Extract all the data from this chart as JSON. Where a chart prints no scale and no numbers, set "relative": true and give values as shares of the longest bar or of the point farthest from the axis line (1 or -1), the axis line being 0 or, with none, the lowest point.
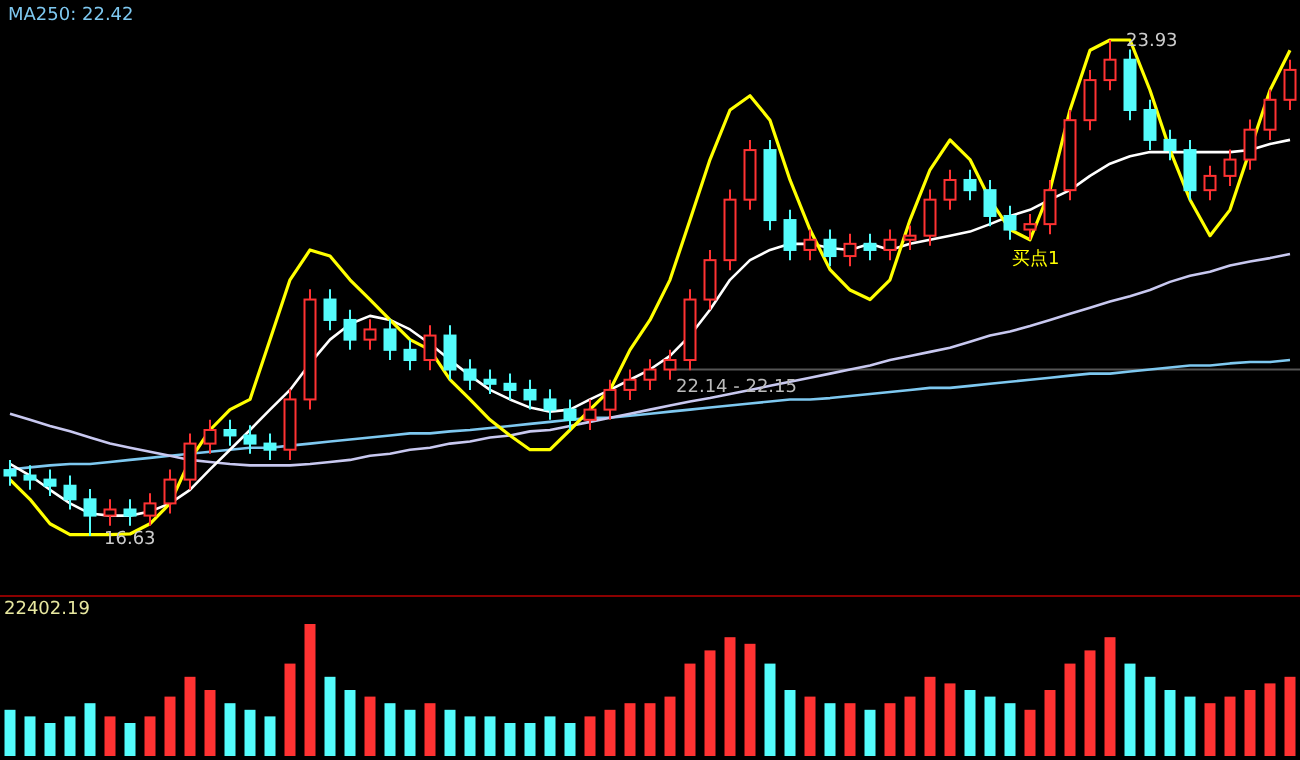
{
  "chart_data": [
    {
      "type": "candlestick",
      "categories": [
        null,
        null,
        null,
        null,
        null,
        null,
        null,
        null,
        null,
        null,
        null,
        null,
        null,
        null,
        null,
        null,
        null,
        null,
        null,
        null,
        null,
        null,
        null,
        null,
        null,
        null,
        null,
        null,
        null,
        null,
        null,
        null,
        null,
        null,
        null,
        null,
        null,
        null,
        null,
        null,
        null,
        null,
        null,
        null,
        null,
        null,
        null,
        null,
        null,
        null,
        null,
        null,
        null,
        null,
        null,
        null,
        null,
        null,
        null,
        null,
        null,
        null,
        null,
        null,
        null
      ],
      "ohlc": [
        [
          17.6,
          17.75,
          17.37,
          17.52
        ],
        [
          17.52,
          17.67,
          17.31,
          17.46
        ],
        [
          17.46,
          17.61,
          17.22,
          17.37
        ],
        [
          17.37,
          17.52,
          17.02,
          17.17
        ],
        [
          17.17,
          17.32,
          16.63,
          16.93
        ],
        [
          16.93,
          17.17,
          16.78,
          17.02
        ],
        [
          17.02,
          17.17,
          16.78,
          16.93
        ],
        [
          16.93,
          17.26,
          16.78,
          17.11
        ],
        [
          17.11,
          17.61,
          16.96,
          17.46
        ],
        [
          17.46,
          18.14,
          17.31,
          17.99
        ],
        [
          17.99,
          18.34,
          17.84,
          18.19
        ],
        [
          18.19,
          18.34,
          17.96,
          18.11
        ],
        [
          18.11,
          18.26,
          17.84,
          17.99
        ],
        [
          17.99,
          18.14,
          17.75,
          17.9
        ],
        [
          17.9,
          18.79,
          17.75,
          18.64
        ],
        [
          18.64,
          20.26,
          18.49,
          20.11
        ],
        [
          20.11,
          20.26,
          19.66,
          19.81
        ],
        [
          19.81,
          19.96,
          19.37,
          19.52
        ],
        [
          19.52,
          19.82,
          19.37,
          19.67
        ],
        [
          19.67,
          19.82,
          19.22,
          19.37
        ],
        [
          19.37,
          19.52,
          19.07,
          19.22
        ],
        [
          19.22,
          19.73,
          19.07,
          19.58
        ],
        [
          19.58,
          19.73,
          18.93,
          19.08
        ],
        [
          19.08,
          19.23,
          18.78,
          18.93
        ],
        [
          18.93,
          19.08,
          18.72,
          18.87
        ],
        [
          18.87,
          19.02,
          18.63,
          18.78
        ],
        [
          18.78,
          18.93,
          18.49,
          18.64
        ],
        [
          18.64,
          18.79,
          18.34,
          18.49
        ],
        [
          18.49,
          18.64,
          18.19,
          18.34
        ],
        [
          18.34,
          18.64,
          18.19,
          18.49
        ],
        [
          18.49,
          18.93,
          18.34,
          18.78
        ],
        [
          18.78,
          19.08,
          18.63,
          18.93
        ],
        [
          18.93,
          19.23,
          18.78,
          19.08
        ],
        [
          19.08,
          19.37,
          18.93,
          19.22
        ],
        [
          19.22,
          20.26,
          19.07,
          20.11
        ],
        [
          20.11,
          20.84,
          19.96,
          20.69
        ],
        [
          20.69,
          21.73,
          20.54,
          21.58
        ],
        [
          21.58,
          22.46,
          21.43,
          22.31
        ],
        [
          22.31,
          22.46,
          21.13,
          21.28
        ],
        [
          21.28,
          21.43,
          20.69,
          20.84
        ],
        [
          20.84,
          21.14,
          20.69,
          20.99
        ],
        [
          20.99,
          21.14,
          20.6,
          20.75
        ],
        [
          20.75,
          21.08,
          20.6,
          20.93
        ],
        [
          20.93,
          21.08,
          20.69,
          20.84
        ],
        [
          20.84,
          21.14,
          20.69,
          20.99
        ],
        [
          20.99,
          21.2,
          20.84,
          21.05
        ],
        [
          21.05,
          21.73,
          20.9,
          21.58
        ],
        [
          21.58,
          22.02,
          21.43,
          21.87
        ],
        [
          21.87,
          22.02,
          21.57,
          21.72
        ],
        [
          21.72,
          21.87,
          21.19,
          21.34
        ],
        [
          21.34,
          21.49,
          20.99,
          21.14
        ],
        [
          21.14,
          21.37,
          20.99,
          21.22
        ],
        [
          21.22,
          21.87,
          21.07,
          21.72
        ],
        [
          21.72,
          22.9,
          21.57,
          22.75
        ],
        [
          22.75,
          23.49,
          22.6,
          23.34
        ],
        [
          23.34,
          23.93,
          23.19,
          23.64
        ],
        [
          23.64,
          23.79,
          22.75,
          22.9
        ],
        [
          22.9,
          23.05,
          22.31,
          22.46
        ],
        [
          22.46,
          22.61,
          22.16,
          22.31
        ],
        [
          22.31,
          22.46,
          21.57,
          21.72
        ],
        [
          21.72,
          22.08,
          21.57,
          21.93
        ],
        [
          21.93,
          22.32,
          21.78,
          22.17
        ],
        [
          22.17,
          22.76,
          22.02,
          22.61
        ],
        [
          22.61,
          23.2,
          22.46,
          23.05
        ],
        [
          23.05,
          23.64,
          22.9,
          23.49
        ]
      ],
      "colors": [
        "#54fcfc",
        "#54fcfc",
        "#54fcfc",
        "#54fcfc",
        "#54fcfc",
        "#ff3232",
        "#54fcfc",
        "#ff3232",
        "#ff3232",
        "#ff3232",
        "#ff3232",
        "#54fcfc",
        "#54fcfc",
        "#54fcfc",
        "#ff3232",
        "#ff3232",
        "#54fcfc",
        "#54fcfc",
        "#ff3232",
        "#54fcfc",
        "#54fcfc",
        "#ff3232",
        "#54fcfc",
        "#54fcfc",
        "#54fcfc",
        "#54fcfc",
        "#54fcfc",
        "#54fcfc",
        "#54fcfc",
        "#ff3232",
        "#ff3232",
        "#ff3232",
        "#ff3232",
        "#ff3232",
        "#ff3232",
        "#ff3232",
        "#ff3232",
        "#ff3232",
        "#54fcfc",
        "#54fcfc",
        "#ff3232",
        "#54fcfc",
        "#ff3232",
        "#54fcfc",
        "#ff3232",
        "#ff3232",
        "#ff3232",
        "#ff3232",
        "#54fcfc",
        "#54fcfc",
        "#54fcfc",
        "#ff3232",
        "#ff3232",
        "#ff3232",
        "#ff3232",
        "#ff3232",
        "#54fcfc",
        "#54fcfc",
        "#54fcfc",
        "#54fcfc",
        "#ff3232",
        "#ff3232",
        "#ff3232",
        "#ff3232",
        "#ff3232"
      ],
      "series": [
        {
          "type": "line",
          "color": "#7ec8f0",
          "values": [
            17.61,
            17.64,
            17.67,
            17.69,
            17.69,
            17.72,
            17.75,
            17.78,
            17.81,
            17.84,
            17.87,
            17.9,
            17.93,
            17.93,
            17.96,
            17.99,
            18.02,
            18.05,
            18.08,
            18.11,
            18.14,
            18.14,
            18.17,
            18.19,
            18.22,
            18.25,
            18.28,
            18.31,
            18.34,
            18.37,
            18.37,
            18.4,
            18.43,
            18.46,
            18.49,
            18.52,
            18.55,
            18.58,
            18.61,
            18.64,
            18.64,
            18.66,
            18.69,
            18.72,
            18.75,
            18.78,
            18.81,
            18.81,
            18.84,
            18.87,
            18.9,
            18.93,
            18.96,
            18.99,
            19.02,
            19.02,
            19.05,
            19.08,
            19.11,
            19.14,
            19.14,
            19.17,
            19.19,
            19.19,
            19.22
          ]
        },
        {
          "type": "line",
          "color": "#c8c8f0",
          "values": [
            18.43,
            18.34,
            18.25,
            18.17,
            18.08,
            17.99,
            17.93,
            17.87,
            17.81,
            17.75,
            17.72,
            17.69,
            17.67,
            17.67,
            17.67,
            17.69,
            17.72,
            17.75,
            17.81,
            17.84,
            17.9,
            17.93,
            17.99,
            18.02,
            18.08,
            18.11,
            18.17,
            18.19,
            18.25,
            18.31,
            18.37,
            18.43,
            18.49,
            18.55,
            18.61,
            18.66,
            18.72,
            18.78,
            18.84,
            18.9,
            18.96,
            19.02,
            19.08,
            19.14,
            19.22,
            19.28,
            19.34,
            19.4,
            19.49,
            19.58,
            19.64,
            19.72,
            19.81,
            19.9,
            19.99,
            20.08,
            20.16,
            20.25,
            20.37,
            20.46,
            20.52,
            20.61,
            20.67,
            20.72,
            20.78
          ]
        },
        {
          "type": "line",
          "color": "#ffffff",
          "values": [
            17.69,
            17.52,
            17.31,
            17.11,
            16.96,
            16.93,
            16.93,
            16.99,
            17.11,
            17.31,
            17.61,
            17.9,
            18.19,
            18.49,
            18.78,
            19.17,
            19.52,
            19.75,
            19.87,
            19.81,
            19.67,
            19.46,
            19.22,
            18.99,
            18.78,
            18.64,
            18.52,
            18.46,
            18.49,
            18.64,
            18.78,
            18.93,
            19.08,
            19.28,
            19.58,
            19.96,
            20.4,
            20.69,
            20.84,
            20.93,
            20.93,
            20.87,
            20.84,
            20.93,
            20.84,
            20.93,
            20.99,
            21.05,
            21.11,
            21.22,
            21.34,
            21.43,
            21.58,
            21.72,
            21.93,
            22.11,
            22.22,
            22.28,
            22.28,
            22.28,
            22.28,
            22.28,
            22.31,
            22.4,
            22.46
          ]
        },
        {
          "type": "line",
          "color": "#ffff00",
          "values": [
            17.46,
            17.17,
            16.81,
            16.65,
            16.65,
            16.65,
            16.66,
            16.81,
            17.11,
            17.75,
            18.19,
            18.49,
            18.64,
            19.52,
            20.4,
            20.84,
            20.75,
            20.4,
            20.11,
            19.81,
            19.52,
            19.37,
            18.93,
            18.64,
            18.34,
            18.11,
            17.9,
            17.9,
            18.19,
            18.49,
            18.78,
            19.37,
            19.81,
            20.4,
            21.28,
            22.17,
            22.9,
            23.11,
            22.75,
            21.87,
            21.14,
            20.55,
            20.25,
            20.11,
            20.4,
            21.28,
            22.02,
            22.46,
            22.17,
            21.58,
            21.14,
            20.99,
            21.72,
            22.9,
            23.78,
            23.93,
            23.93,
            23.19,
            22.31,
            21.58,
            21.05,
            21.43,
            22.31,
            23.19,
            23.78
          ]
        }
      ],
      "ref_lines": [
        {
          "axis": "y",
          "value": 19.08,
          "color": "#555555"
        }
      ],
      "annotations": [
        "MA250: 22.42",
        "16.63",
        "23.93",
        "买点1",
        "22.14 - 22.15"
      ]
    },
    {
      "type": "bar",
      "relative": true,
      "categories": [
        null,
        null,
        null,
        null,
        null,
        null,
        null,
        null,
        null,
        null,
        null,
        null,
        null,
        null,
        null,
        null,
        null,
        null,
        null,
        null,
        null,
        null,
        null,
        null,
        null,
        null,
        null,
        null,
        null,
        null,
        null,
        null,
        null,
        null,
        null,
        null,
        null,
        null,
        null,
        null,
        null,
        null,
        null,
        null,
        null,
        null,
        null,
        null,
        null,
        null,
        null,
        null,
        null,
        null,
        null,
        null,
        null,
        null,
        null,
        null,
        null,
        null,
        null,
        null,
        null
      ],
      "values": [
        0.35,
        0.3,
        0.25,
        0.3,
        0.4,
        0.3,
        0.25,
        0.3,
        0.45,
        0.6,
        0.5,
        0.4,
        0.35,
        0.3,
        0.7,
        1.0,
        0.6,
        0.5,
        0.45,
        0.4,
        0.35,
        0.4,
        0.35,
        0.3,
        0.3,
        0.25,
        0.25,
        0.3,
        0.25,
        0.3,
        0.35,
        0.4,
        0.4,
        0.45,
        0.7,
        0.8,
        0.9,
        0.85,
        0.7,
        0.5,
        0.45,
        0.4,
        0.4,
        0.35,
        0.4,
        0.45,
        0.6,
        0.55,
        0.5,
        0.45,
        0.4,
        0.35,
        0.5,
        0.7,
        0.8,
        0.9,
        0.7,
        0.6,
        0.5,
        0.45,
        0.4,
        0.45,
        0.5,
        0.55,
        0.6
      ],
      "colors": [
        "#54fcfc",
        "#54fcfc",
        "#54fcfc",
        "#54fcfc",
        "#54fcfc",
        "#ff3232",
        "#54fcfc",
        "#ff3232",
        "#ff3232",
        "#ff3232",
        "#ff3232",
        "#54fcfc",
        "#54fcfc",
        "#54fcfc",
        "#ff3232",
        "#ff3232",
        "#54fcfc",
        "#54fcfc",
        "#ff3232",
        "#54fcfc",
        "#54fcfc",
        "#ff3232",
        "#54fcfc",
        "#54fcfc",
        "#54fcfc",
        "#54fcfc",
        "#54fcfc",
        "#54fcfc",
        "#54fcfc",
        "#ff3232",
        "#ff3232",
        "#ff3232",
        "#ff3232",
        "#ff3232",
        "#ff3232",
        "#ff3232",
        "#ff3232",
        "#ff3232",
        "#54fcfc",
        "#54fcfc",
        "#ff3232",
        "#54fcfc",
        "#ff3232",
        "#54fcfc",
        "#ff3232",
        "#ff3232",
        "#ff3232",
        "#ff3232",
        "#54fcfc",
        "#54fcfc",
        "#54fcfc",
        "#ff3232",
        "#ff3232",
        "#ff3232",
        "#ff3232",
        "#ff3232",
        "#54fcfc",
        "#54fcfc",
        "#54fcfc",
        "#54fcfc",
        "#ff3232",
        "#ff3232",
        "#ff3232",
        "#ff3232",
        "#ff3232"
      ],
      "annotations": [
        "22402.19"
      ]
    }
  ]
}
